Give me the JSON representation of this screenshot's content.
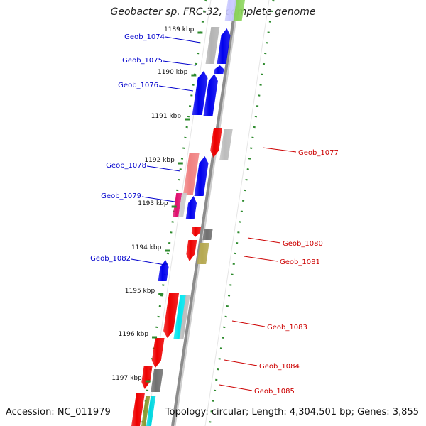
{
  "title": "Geobacter sp. FRC-32, complete genome",
  "accession": "Accession: NC_011979",
  "topology": "Topology: circular; Length: 4,304,501 bp; Genes: 3,855",
  "colors": {
    "backbone": "#8c8c8c",
    "dotted_track": "#2e8b2e",
    "forward_label": "#0000cc",
    "reverse_label": "#cc0000"
  },
  "ticks": [
    "1189 kbp",
    "1190 kbp",
    "1191 kbp",
    "1192 kbp",
    "1193 kbp",
    "1194 kbp",
    "1195 kbp",
    "1196 kbp",
    "1197 kbp"
  ],
  "gene_labels": [
    {
      "text": "Geob_1074",
      "strand": "forward"
    },
    {
      "text": "Geob_1075",
      "strand": "forward"
    },
    {
      "text": "Geob_1076",
      "strand": "forward"
    },
    {
      "text": "Geob_1077",
      "strand": "reverse"
    },
    {
      "text": "Geob_1078",
      "strand": "forward"
    },
    {
      "text": "Geob_1079",
      "strand": "forward"
    },
    {
      "text": "Geob_1080",
      "strand": "reverse"
    },
    {
      "text": "Geob_1081",
      "strand": "reverse"
    },
    {
      "text": "Geob_1082",
      "strand": "forward"
    },
    {
      "text": "Geob_1083",
      "strand": "reverse"
    },
    {
      "text": "Geob_1084",
      "strand": "reverse"
    },
    {
      "text": "Geob_1085",
      "strand": "reverse"
    }
  ]
}
